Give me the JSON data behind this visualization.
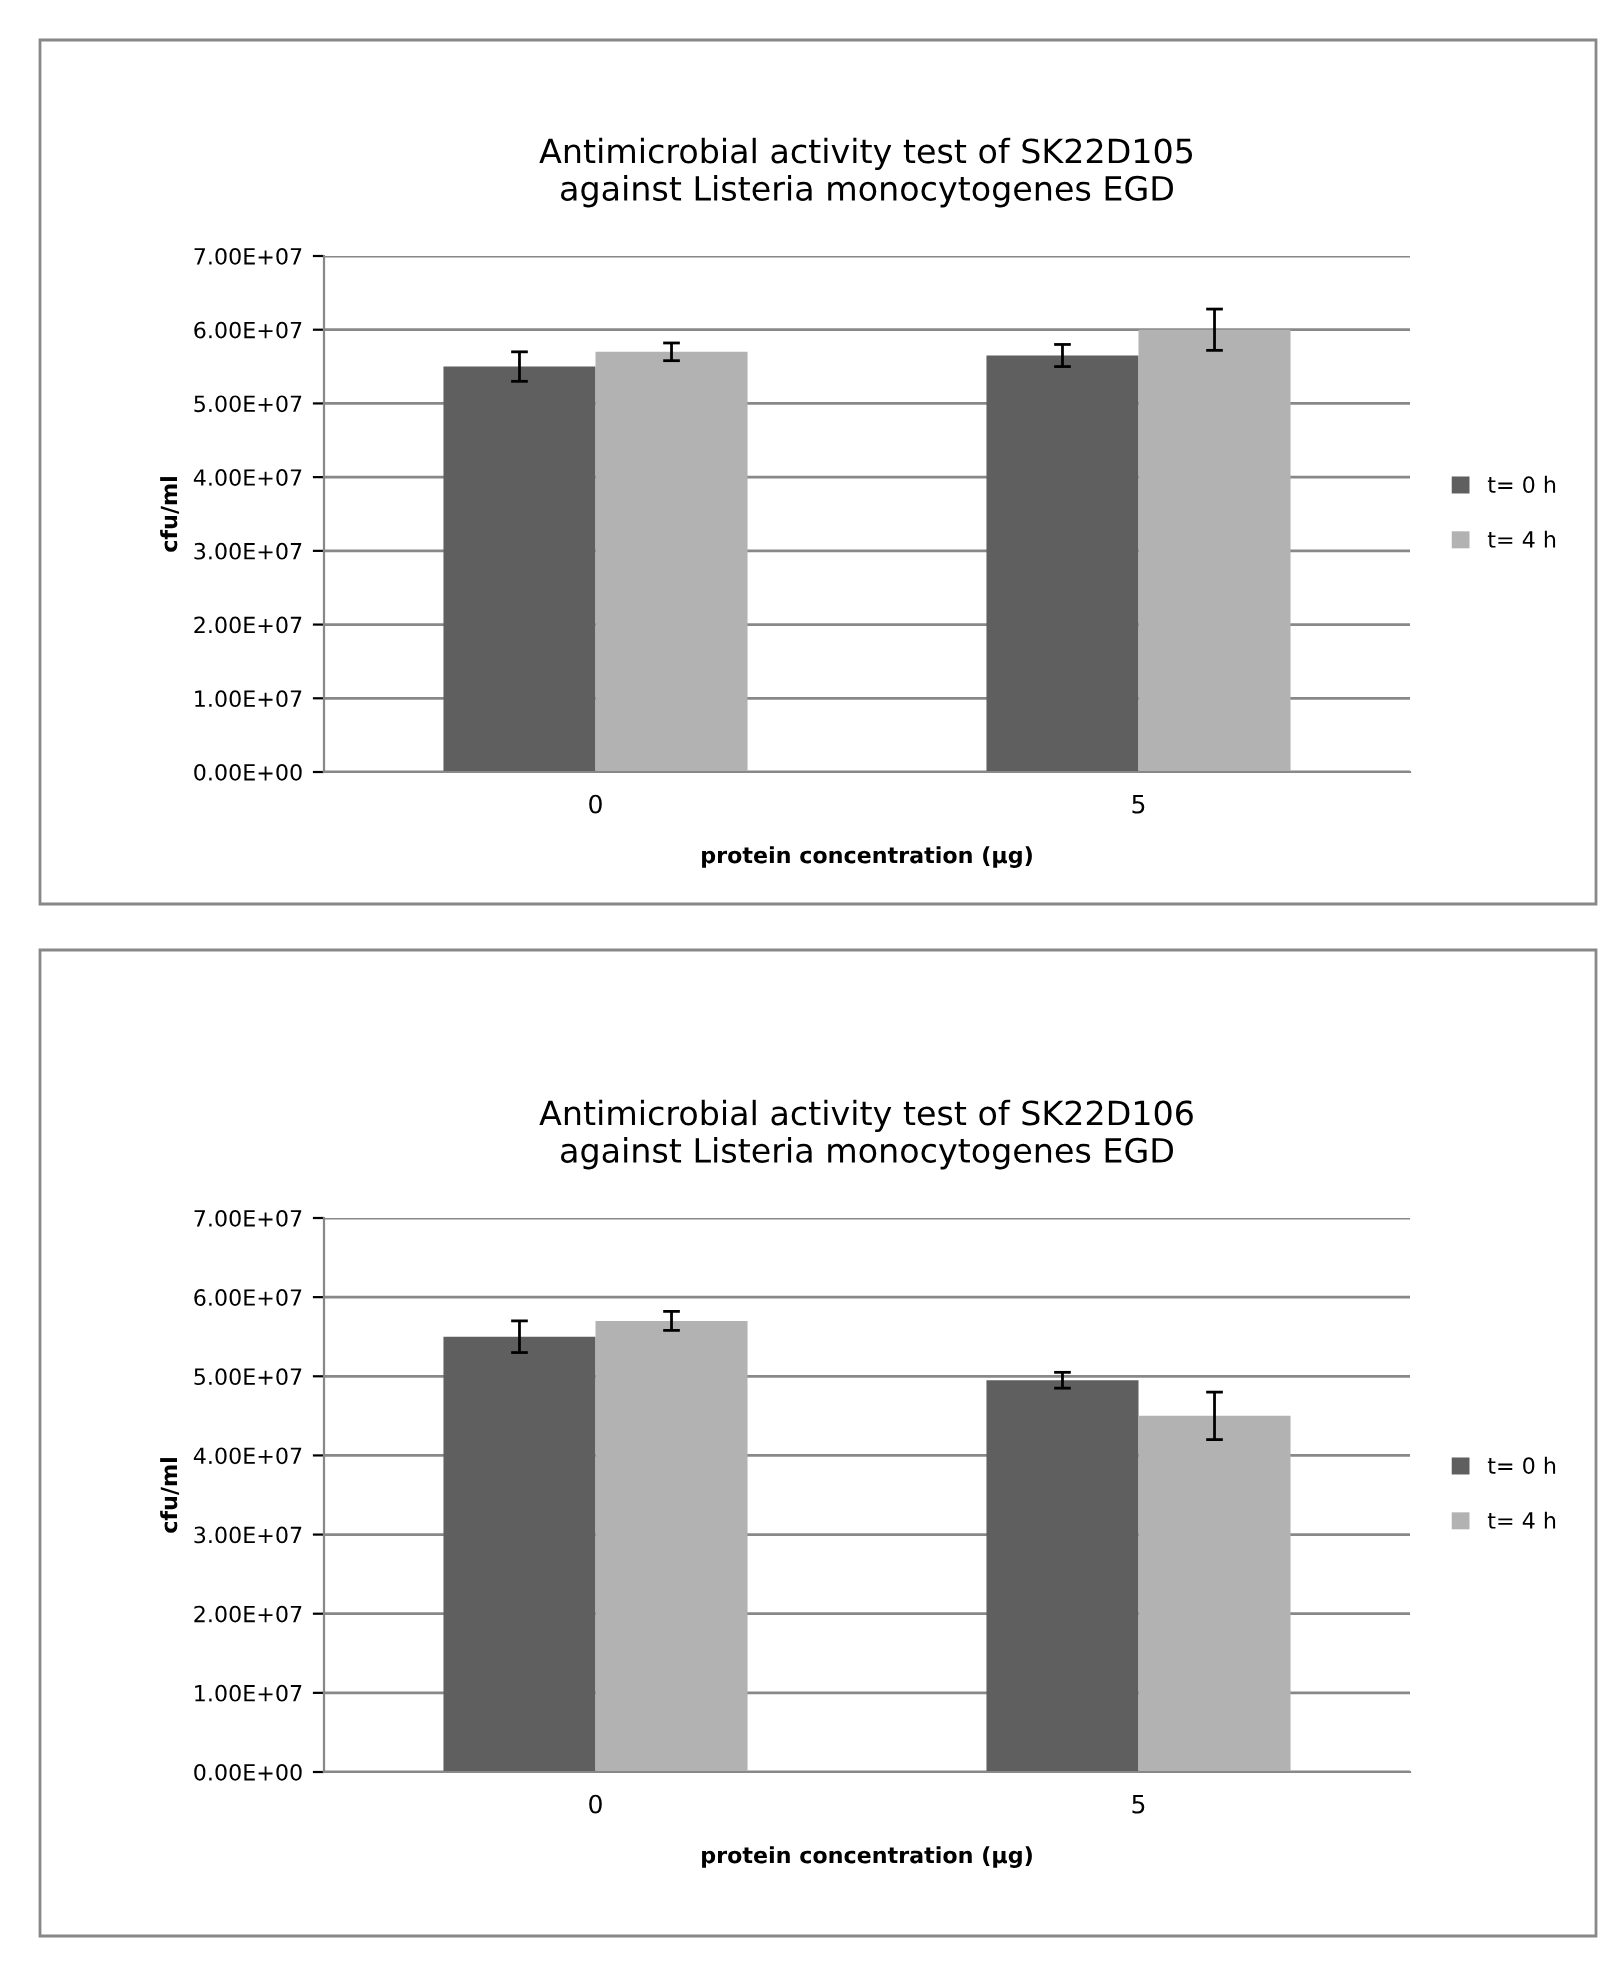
{
  "chart_data": [
    {
      "type": "bar",
      "title": "Antimicrobial activity test of SK22D105\nagainst Listeria monocytogenes EGD",
      "xlabel": "protein concentration (µg)",
      "ylabel": "cfu/ml",
      "categories": [
        "0",
        "5"
      ],
      "series": [
        {
          "name": "t= 0 h",
          "color": "#5f5f5f",
          "values": [
            55000000,
            56500000
          ],
          "errors": [
            2000000,
            1500000
          ]
        },
        {
          "name": "t= 4 h",
          "color": "#b2b2b2",
          "values": [
            57000000,
            60000000
          ],
          "errors": [
            1200000,
            2800000
          ]
        }
      ],
      "ylim": [
        0,
        70000000
      ],
      "yticks": [
        {
          "value": 0,
          "label": "0.00E+00"
        },
        {
          "value": 10000000,
          "label": "1.00E+07"
        },
        {
          "value": 20000000,
          "label": "2.00E+07"
        },
        {
          "value": 30000000,
          "label": "3.00E+07"
        },
        {
          "value": 40000000,
          "label": "4.00E+07"
        },
        {
          "value": 50000000,
          "label": "5.00E+07"
        },
        {
          "value": 60000000,
          "label": "6.00E+07"
        },
        {
          "value": 70000000,
          "label": "7.00E+07"
        }
      ],
      "grid": "y",
      "legend": "right"
    },
    {
      "type": "bar",
      "title": "Antimicrobial activity test of SK22D106\nagainst Listeria monocytogenes EGD",
      "xlabel": "protein concentration (µg)",
      "ylabel": "cfu/ml",
      "categories": [
        "0",
        "5"
      ],
      "series": [
        {
          "name": "t= 0 h",
          "color": "#5f5f5f",
          "values": [
            55000000,
            49500000
          ],
          "errors": [
            2000000,
            1000000
          ]
        },
        {
          "name": "t= 4 h",
          "color": "#b2b2b2",
          "values": [
            57000000,
            45000000
          ],
          "errors": [
            1200000,
            3000000
          ]
        }
      ],
      "ylim": [
        0,
        70000000
      ],
      "yticks": [
        {
          "value": 0,
          "label": "0.00E+00"
        },
        {
          "value": 10000000,
          "label": "1.00E+07"
        },
        {
          "value": 20000000,
          "label": "2.00E+07"
        },
        {
          "value": 30000000,
          "label": "3.00E+07"
        },
        {
          "value": 40000000,
          "label": "4.00E+07"
        },
        {
          "value": 50000000,
          "label": "5.00E+07"
        },
        {
          "value": 60000000,
          "label": "6.00E+07"
        },
        {
          "value": 70000000,
          "label": "7.00E+07"
        }
      ],
      "grid": "y",
      "legend": "right"
    }
  ]
}
